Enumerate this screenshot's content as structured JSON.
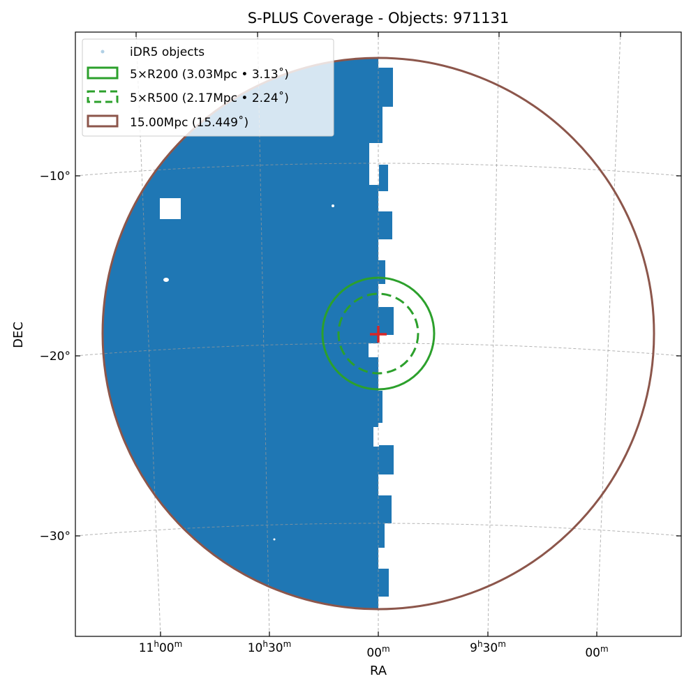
{
  "chart_data": {
    "type": "scatter",
    "title": "S-PLUS Coverage - Objects: 971131",
    "xlabel": "RA",
    "ylabel": "DEC",
    "projection": "sky (RA/DEC, center RA 10h00m, DEC −18.9°)",
    "grid": true,
    "center": {
      "ra": "10h00m",
      "dec": -18.9
    },
    "ra_ticks": [
      {
        "label_main": "11",
        "sup1": "h",
        "label_sec": "00",
        "sup2": "m"
      },
      {
        "label_main": "10",
        "sup1": "h",
        "label_sec": "30",
        "sup2": "m"
      },
      {
        "label_main": "",
        "sup1": "",
        "label_sec": "00",
        "sup2": "m"
      },
      {
        "label_main": "9",
        "sup1": "h",
        "label_sec": "30",
        "sup2": "m"
      },
      {
        "label_main": "",
        "sup1": "",
        "label_sec": "00",
        "sup2": "m"
      }
    ],
    "dec_ticks": [
      {
        "value": -10,
        "label": "−10°"
      },
      {
        "value": -20,
        "label": "−20°"
      },
      {
        "value": -30,
        "label": "−30°"
      }
    ],
    "series": [
      {
        "name": "iDR5 objects",
        "kind": "scatter-points",
        "color": "#1f77b4",
        "count": 971131
      },
      {
        "name": "5×R200 (3.03Mpc • 3.13˚)",
        "kind": "circle",
        "radius_deg": 3.13,
        "radius_mpc": 3.03,
        "color": "#2ca02c",
        "style": "solid"
      },
      {
        "name": "5×R500 (2.17Mpc • 2.24˚)",
        "kind": "circle",
        "radius_deg": 2.24,
        "radius_mpc": 2.17,
        "color": "#2ca02c",
        "style": "dashed"
      },
      {
        "name": "15.00Mpc (15.449˚)",
        "kind": "circle",
        "radius_deg": 15.449,
        "radius_mpc": 15.0,
        "color": "#8c564b",
        "style": "solid"
      }
    ],
    "center_marker": {
      "symbol": "+",
      "color": "#d62728"
    },
    "legend": {
      "position": "top-left",
      "entries": [
        "iDR5 objects",
        "5×R200 (3.03Mpc • 3.13˚)",
        "5×R500 (2.17Mpc • 2.24˚)",
        "15.00Mpc (15.449˚)"
      ]
    }
  }
}
